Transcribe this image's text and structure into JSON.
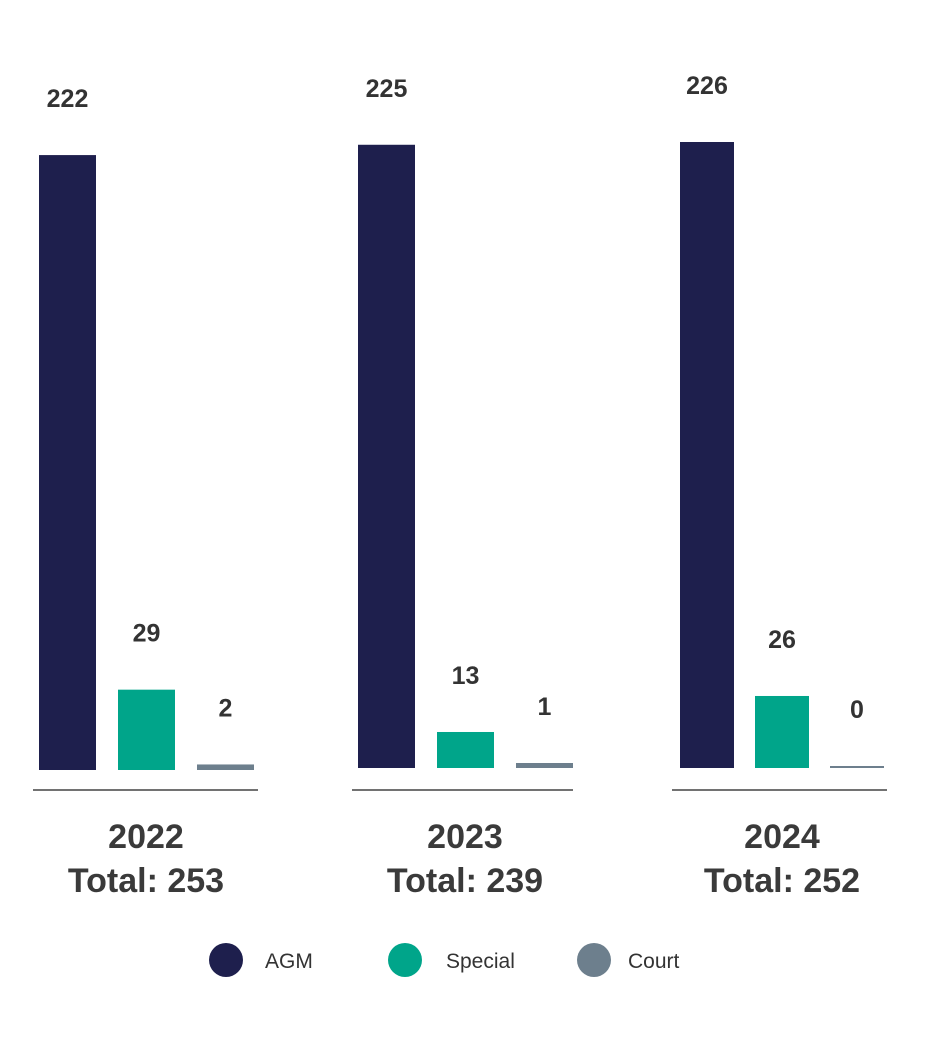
{
  "chart_data": {
    "type": "bar",
    "categories": [
      "2022",
      "2023",
      "2024"
    ],
    "totals": [
      "Total: 253",
      "Total: 239",
      "Total: 252"
    ],
    "series": [
      {
        "name": "AGM",
        "color": "#1e1f4d",
        "values": [
          222,
          225,
          226
        ]
      },
      {
        "name": "Special",
        "color": "#00a58a",
        "values": [
          29,
          13,
          26
        ]
      },
      {
        "name": "Court",
        "color": "#6d7f8d",
        "values": [
          2,
          1,
          0
        ]
      }
    ],
    "ylim": [
      0,
      226
    ],
    "grid": false,
    "legend_position": "bottom"
  }
}
